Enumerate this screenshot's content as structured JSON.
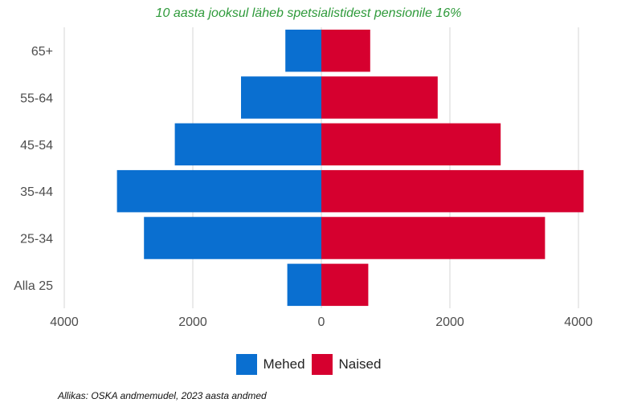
{
  "chart_data": {
    "type": "bar",
    "orientation": "horizontal",
    "title": "10 aasta jooksul läheb spetsialistidest pensionile 16%",
    "categories": [
      "65+",
      "55-64",
      "45-54",
      "35-44",
      "25-34",
      "Alla 25"
    ],
    "series": [
      {
        "name": "Mehed",
        "values": [
          -560,
          -1250,
          -2280,
          -3180,
          -2760,
          -530
        ],
        "color": "#0a6fd0"
      },
      {
        "name": "Naised",
        "values": [
          760,
          1810,
          2790,
          4080,
          3480,
          730
        ],
        "color": "#d6002f"
      }
    ],
    "xlim": [
      -4000,
      4000
    ],
    "xticks": [
      -4000,
      -2000,
      0,
      2000,
      4000
    ],
    "xtick_labels": [
      "4000",
      "2000",
      "0",
      "2000",
      "4000"
    ],
    "grid": "vertical",
    "legend_position": "bottom"
  },
  "legend": {
    "male_label": "Mehed",
    "female_label": "Naised"
  },
  "source": "Allikas: OSKA andmemudel, 2023 aasta andmed"
}
